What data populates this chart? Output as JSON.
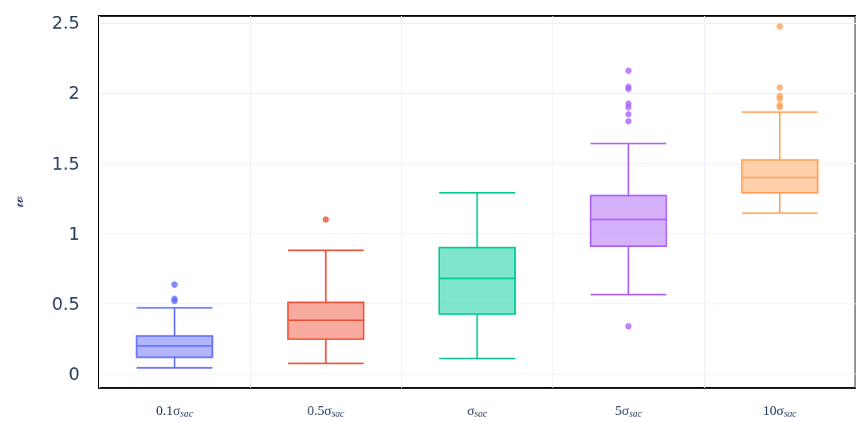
{
  "chart_data": {
    "type": "box",
    "ylabel": "𝓌",
    "categories": [
      "0.1σ$_{sac}$",
      "0.5σ$_{sac}$",
      "σ$_{sac}$",
      "5σ$_{sac}$",
      "10σ$_{sac}$"
    ],
    "colors": [
      "#636efa",
      "#ef553b",
      "#00cc96",
      "#ab63fa",
      "#ffa15a"
    ],
    "boxes": [
      {
        "low": 0.043,
        "q1": 0.118,
        "median": 0.2,
        "q3": 0.27,
        "high": 0.47,
        "outliers": [
          0.52,
          0.535,
          0.636
        ]
      },
      {
        "low": 0.074,
        "q1": 0.247,
        "median": 0.382,
        "q3": 0.51,
        "high": 0.88,
        "outliers": [
          1.1
        ]
      },
      {
        "low": 0.11,
        "q1": 0.426,
        "median": 0.68,
        "q3": 0.9,
        "high": 1.29
      },
      {
        "low": 0.565,
        "q1": 0.91,
        "median": 1.1,
        "q3": 1.27,
        "high": 1.64,
        "outliers": [
          0.34,
          1.8,
          1.85,
          1.9,
          1.925,
          2.03,
          2.045,
          2.16
        ]
      },
      {
        "low": 1.145,
        "q1": 1.29,
        "median": 1.4,
        "q3": 1.525,
        "high": 1.865,
        "outliers": [
          1.9,
          1.915,
          1.96,
          1.98,
          2.04,
          2.475
        ]
      }
    ],
    "ylim": [
      -0.1,
      2.55
    ],
    "yticks": [
      0,
      0.5,
      1,
      1.5,
      2,
      2.5
    ],
    "grid": true
  }
}
